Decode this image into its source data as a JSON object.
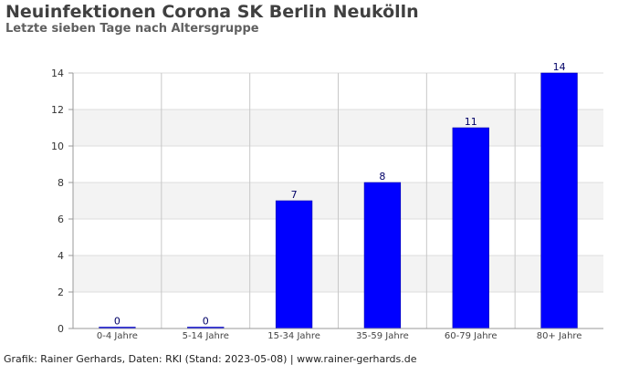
{
  "header": {
    "title": "Neuinfektionen Corona SK Berlin Neukölln",
    "subtitle": "Letzte sieben Tage nach Altersgruppe"
  },
  "footer": {
    "credit": "Grafik: Rainer Gerhards, Daten: RKI (Stand: 2023-05-08) | www.rainer-gerhards.de"
  },
  "chart_data": {
    "type": "bar",
    "title": "Neuinfektionen Corona SK Berlin Neukölln",
    "subtitle": "Letzte sieben Tage nach Altersgruppe",
    "categories": [
      "0-4 Jahre",
      "5-14 Jahre",
      "15-34 Jahre",
      "35-59 Jahre",
      "60-79 Jahre",
      "80+ Jahre"
    ],
    "values": [
      0,
      0,
      7,
      8,
      11,
      14
    ],
    "xlabel": "",
    "ylabel": "",
    "ylim": [
      0,
      14
    ],
    "yticks": [
      0,
      2,
      4,
      6,
      8,
      10,
      12,
      14
    ],
    "grid": true,
    "legend": "none",
    "colors": {
      "bar": "#0000ff",
      "band": "#f3f3f3",
      "grid": "#dddddd",
      "vgrid": "#c8c8c8",
      "axis": "#999999"
    }
  }
}
